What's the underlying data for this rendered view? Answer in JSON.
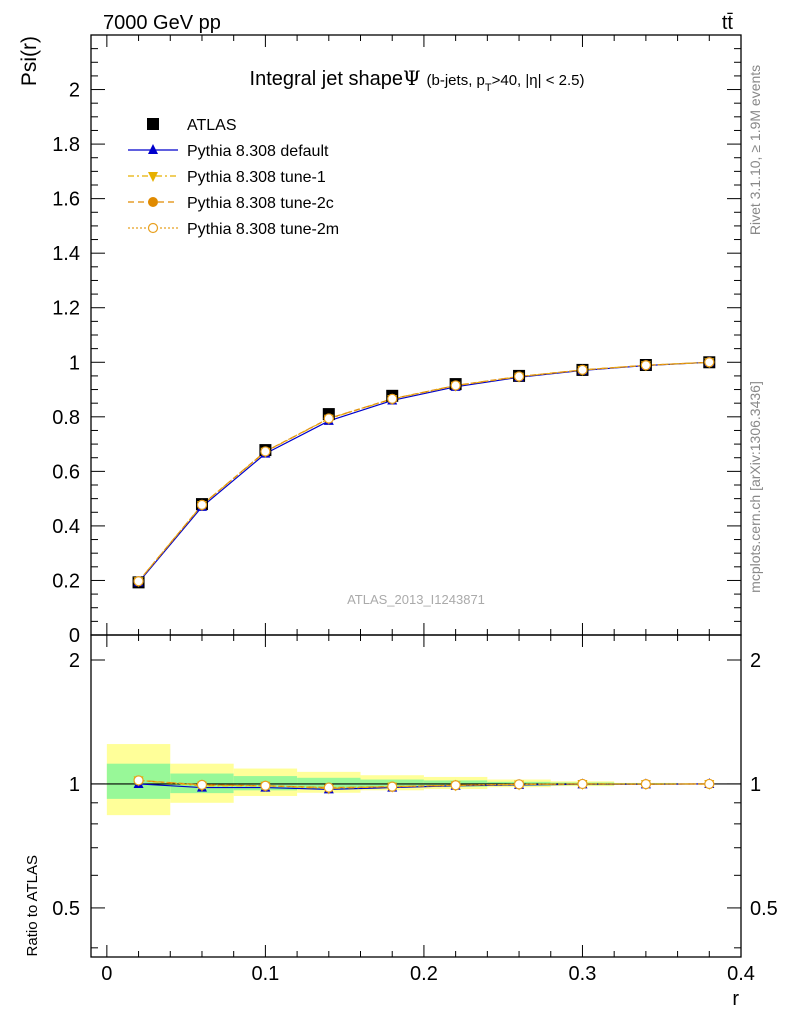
{
  "header": {
    "energy_label": "7000 GeV pp",
    "process_label": "tt̄"
  },
  "side_labels": {
    "rivet": "Rivet 3.1.10, ≥ 1.9M events",
    "mcplots": "mcplots.cern.ch [arXiv:1306.3436]"
  },
  "plot_title": {
    "main": "Integral jet shape",
    "symbol": "Ψ",
    "cuts_pre": "(b-jets, p",
    "cuts_sub": "T",
    "cuts_post": ">40, |η| < 2.5)"
  },
  "watermark": "ATLAS_2013_I1243871",
  "colors": {
    "data": "#000000",
    "default": "#0000cc",
    "tune1": "#e6b000",
    "tune2c": "#e08a00",
    "tune2m": "#e8a020",
    "band_green": "#98f898",
    "band_yellow": "#ffff99"
  },
  "chart_data": [
    {
      "type": "line",
      "ylabel": "Psi(r)",
      "xlabel": "r",
      "xlim": [
        -0.01,
        0.4
      ],
      "ylim": [
        0,
        2.2
      ],
      "x_ticks": [
        0,
        0.1,
        0.2,
        0.3,
        0.4
      ],
      "y_ticks": [
        0,
        0.2,
        0.4,
        0.6,
        0.8,
        1,
        1.2,
        1.4,
        1.6,
        1.8,
        2
      ],
      "y_tick_labels": [
        "0",
        "0.2",
        "0.4",
        "0.6",
        "0.8",
        "1",
        "1.2",
        "1.4",
        "1.6",
        "1.8",
        "2"
      ],
      "legend_position": "top-left",
      "x": [
        0.02,
        0.06,
        0.1,
        0.14,
        0.18,
        0.22,
        0.26,
        0.3,
        0.34,
        0.38
      ],
      "series": [
        {
          "name": "ATLAS",
          "marker": "square",
          "values": [
            0.193,
            0.48,
            0.678,
            0.81,
            0.877,
            0.92,
            0.95,
            0.972,
            0.99,
            1.0
          ]
        },
        {
          "name": "Pythia 8.308 default",
          "marker": "triangle-up",
          "values": [
            0.193,
            0.47,
            0.665,
            0.785,
            0.86,
            0.91,
            0.945,
            0.97,
            0.988,
            1.0
          ]
        },
        {
          "name": "Pythia 8.308 tune-1",
          "marker": "triangle-down",
          "values": [
            0.197,
            0.476,
            0.672,
            0.793,
            0.865,
            0.914,
            0.947,
            0.972,
            0.989,
            1.0
          ]
        },
        {
          "name": "Pythia 8.308 tune-2c",
          "marker": "circle-filled",
          "values": [
            0.197,
            0.477,
            0.673,
            0.794,
            0.866,
            0.915,
            0.948,
            0.972,
            0.989,
            1.0
          ]
        },
        {
          "name": "Pythia 8.308 tune-2m",
          "marker": "circle-open",
          "values": [
            0.197,
            0.477,
            0.673,
            0.794,
            0.866,
            0.915,
            0.948,
            0.972,
            0.989,
            1.0
          ]
        }
      ]
    },
    {
      "type": "line",
      "ylabel": "Ratio to ATLAS",
      "xlabel": "r",
      "xlim": [
        -0.01,
        0.4
      ],
      "ylim": [
        0.38,
        2.3
      ],
      "y_scale": "log",
      "x_ticks": [
        0,
        0.1,
        0.2,
        0.3,
        0.4
      ],
      "y_ticks": [
        0.5,
        1,
        2
      ],
      "y_tick_labels": [
        "0.5",
        "1",
        "2"
      ],
      "bins": [
        [
          0.0,
          0.04
        ],
        [
          0.04,
          0.08
        ],
        [
          0.08,
          0.12
        ],
        [
          0.12,
          0.16
        ],
        [
          0.16,
          0.2
        ],
        [
          0.2,
          0.24
        ],
        [
          0.24,
          0.28
        ],
        [
          0.28,
          0.32
        ],
        [
          0.32,
          0.36
        ],
        [
          0.36,
          0.4
        ]
      ],
      "band_inner": [
        [
          0.92,
          1.12
        ],
        [
          0.95,
          1.06
        ],
        [
          0.965,
          1.045
        ],
        [
          0.975,
          1.035
        ],
        [
          0.982,
          1.025
        ],
        [
          0.985,
          1.02
        ],
        [
          0.99,
          1.012
        ],
        [
          0.993,
          1.008
        ],
        [
          0.997,
          1.004
        ],
        [
          1.0,
          1.0
        ]
      ],
      "band_outer": [
        [
          0.84,
          1.25
        ],
        [
          0.9,
          1.12
        ],
        [
          0.935,
          1.09
        ],
        [
          0.952,
          1.07
        ],
        [
          0.965,
          1.05
        ],
        [
          0.972,
          1.04
        ],
        [
          0.982,
          1.025
        ],
        [
          0.988,
          1.015
        ],
        [
          0.995,
          1.006
        ],
        [
          1.0,
          1.0
        ]
      ],
      "x": [
        0.02,
        0.06,
        0.1,
        0.14,
        0.18,
        0.22,
        0.26,
        0.3,
        0.34,
        0.38
      ],
      "series": [
        {
          "name": "Pythia 8.308 default",
          "marker": "triangle-up",
          "values": [
            1.0,
            0.98,
            0.98,
            0.97,
            0.98,
            0.99,
            0.995,
            0.998,
            0.998,
            1.0
          ]
        },
        {
          "name": "Pythia 8.308 tune-1",
          "marker": "triangle-down",
          "values": [
            1.02,
            0.99,
            0.99,
            0.975,
            0.985,
            0.992,
            0.997,
            1.0,
            0.999,
            1.0
          ]
        },
        {
          "name": "Pythia 8.308 tune-2c",
          "marker": "circle-filled",
          "values": [
            1.02,
            0.995,
            0.99,
            0.98,
            0.985,
            0.993,
            0.998,
            1.0,
            0.999,
            1.0
          ]
        },
        {
          "name": "Pythia 8.308 tune-2m",
          "marker": "circle-open",
          "values": [
            1.02,
            0.995,
            0.99,
            0.98,
            0.985,
            0.993,
            0.998,
            1.0,
            0.999,
            1.0
          ]
        }
      ]
    }
  ]
}
